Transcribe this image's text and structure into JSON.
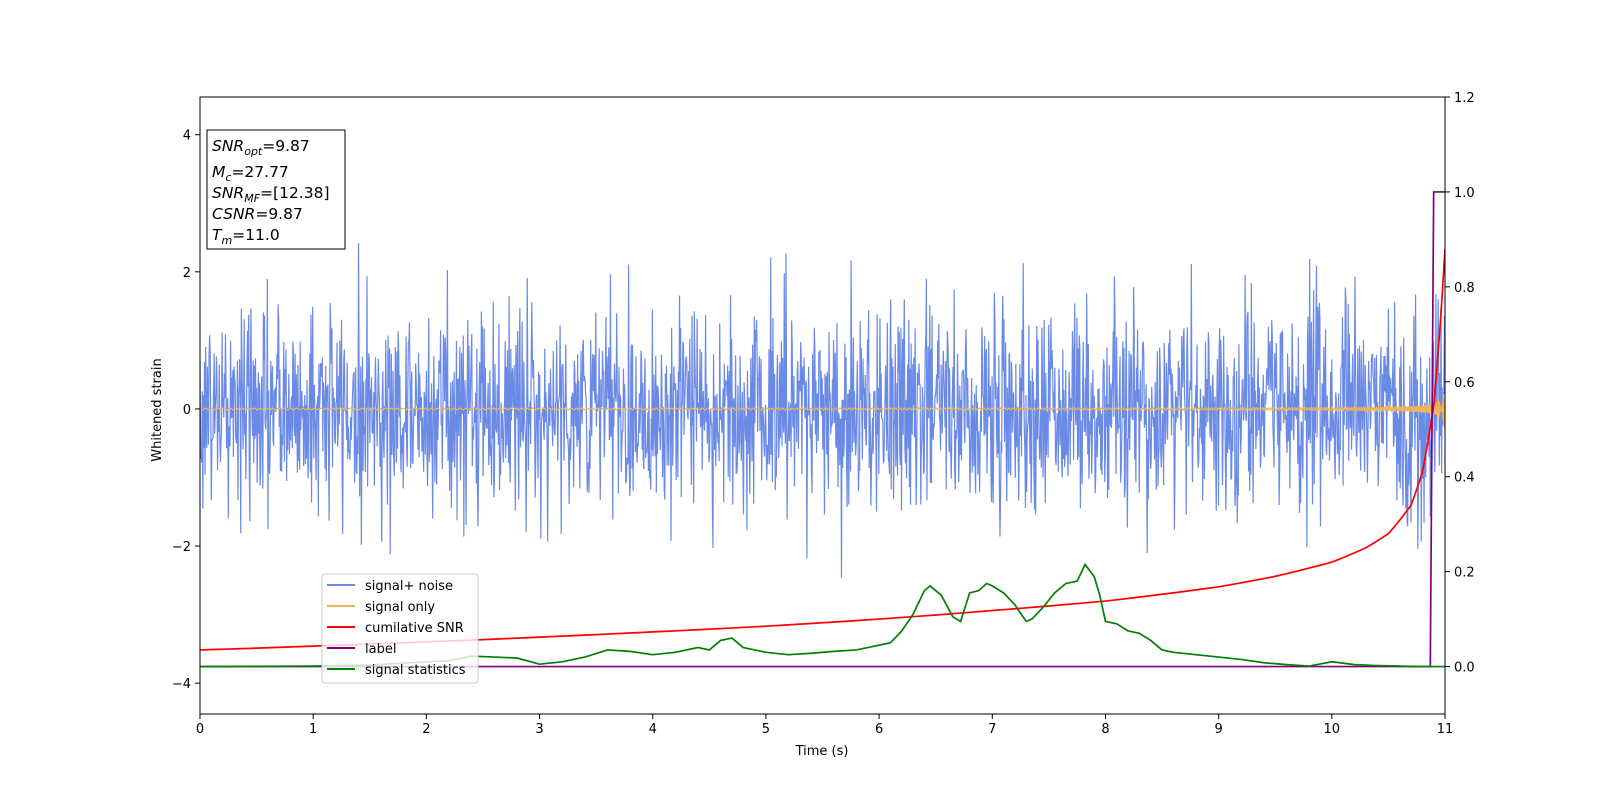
{
  "chart_data": {
    "type": "line",
    "xlabel": "Time (s)",
    "ylabel": "Whitened strain",
    "xlim": [
      0,
      11
    ],
    "ylim": [
      -4.45,
      4.55
    ],
    "y2lim": [
      -0.1,
      1.2
    ],
    "x_ticks": [
      0,
      1,
      2,
      3,
      4,
      5,
      6,
      7,
      8,
      9,
      10,
      11
    ],
    "y_ticks": [
      -4,
      -2,
      0,
      2,
      4
    ],
    "y2_ticks": [
      0.0,
      0.2,
      0.4,
      0.6,
      0.8,
      1.0,
      1.2
    ],
    "x_tick_labels": [
      "0",
      "1",
      "2",
      "3",
      "4",
      "5",
      "6",
      "7",
      "8",
      "9",
      "10",
      "11"
    ],
    "y_tick_labels": [
      "−4",
      "−2",
      "0",
      "2",
      "4"
    ],
    "y2_tick_labels": [
      "0.0",
      "0.2",
      "0.4",
      "0.6",
      "0.8",
      "1.0",
      "1.2"
    ],
    "grid": false,
    "legend_position": "lower-left",
    "series": [
      {
        "name": "signal+ noise",
        "axis": "left",
        "color": "#6a8ae6",
        "amplitude_std": 0.75,
        "duration": 11,
        "sample_count": 2200
      },
      {
        "name": "signal only",
        "axis": "left",
        "color": "#f0b55a",
        "start_amplitude": 0.01,
        "peak_amplitude": 0.4,
        "merger_time": 11.0
      },
      {
        "name": "cumilative SNR",
        "axis": "right",
        "color": "#ff0000",
        "x": [
          0,
          1,
          2,
          3,
          4,
          5,
          6,
          7,
          8,
          9,
          9.5,
          10,
          10.3,
          10.5,
          10.7,
          10.8,
          10.9,
          11.0
        ],
        "y": [
          0.035,
          0.043,
          0.052,
          0.062,
          0.073,
          0.085,
          0.1,
          0.118,
          0.138,
          0.168,
          0.19,
          0.22,
          0.25,
          0.28,
          0.34,
          0.41,
          0.55,
          0.88
        ]
      },
      {
        "name": "label",
        "axis": "right",
        "color": "#800080",
        "x": [
          0,
          10.87,
          10.9,
          11.0
        ],
        "y": [
          0.0,
          0.0,
          1.0,
          1.0
        ]
      },
      {
        "name": "signal statistics",
        "axis": "right",
        "color": "#008000",
        "x": [
          0,
          1,
          1.5,
          2.0,
          2.2,
          2.4,
          2.6,
          2.8,
          3.0,
          3.2,
          3.4,
          3.6,
          3.8,
          4.0,
          4.2,
          4.4,
          4.5,
          4.6,
          4.7,
          4.8,
          5.0,
          5.2,
          5.4,
          5.6,
          5.8,
          6.0,
          6.1,
          6.2,
          6.3,
          6.4,
          6.45,
          6.55,
          6.65,
          6.72,
          6.8,
          6.88,
          6.95,
          7.0,
          7.1,
          7.2,
          7.3,
          7.35,
          7.45,
          7.55,
          7.65,
          7.75,
          7.82,
          7.9,
          7.95,
          8.0,
          8.1,
          8.2,
          8.3,
          8.4,
          8.5,
          8.6,
          8.8,
          9.0,
          9.2,
          9.4,
          9.6,
          9.8,
          10.0,
          10.2,
          10.4,
          10.6,
          10.8,
          10.9,
          11.0
        ],
        "y": [
          0.0,
          0.001,
          0.003,
          0.01,
          0.012,
          0.022,
          0.02,
          0.018,
          0.005,
          0.01,
          0.02,
          0.035,
          0.032,
          0.025,
          0.03,
          0.04,
          0.035,
          0.055,
          0.06,
          0.04,
          0.03,
          0.025,
          0.028,
          0.032,
          0.035,
          0.045,
          0.05,
          0.075,
          0.11,
          0.16,
          0.17,
          0.15,
          0.105,
          0.095,
          0.155,
          0.16,
          0.175,
          0.17,
          0.155,
          0.13,
          0.095,
          0.1,
          0.125,
          0.155,
          0.175,
          0.18,
          0.215,
          0.19,
          0.15,
          0.095,
          0.09,
          0.075,
          0.07,
          0.055,
          0.035,
          0.03,
          0.025,
          0.02,
          0.015,
          0.008,
          0.004,
          0.001,
          0.01,
          0.004,
          0.002,
          0.001,
          0.0,
          0.0,
          0.0
        ]
      }
    ],
    "info_box": [
      {
        "base": "SNR",
        "sub": "opt",
        "value": "=9.87"
      },
      {
        "base": "M",
        "sub": "c",
        "value": "=27.77"
      },
      {
        "base": "SNR",
        "sub": "MF",
        "value": "=[12.38]"
      },
      {
        "base": "CSNR",
        "sub": "",
        "value": "=9.87"
      },
      {
        "base": "T",
        "sub": "m",
        "value": "=11.0"
      }
    ]
  }
}
